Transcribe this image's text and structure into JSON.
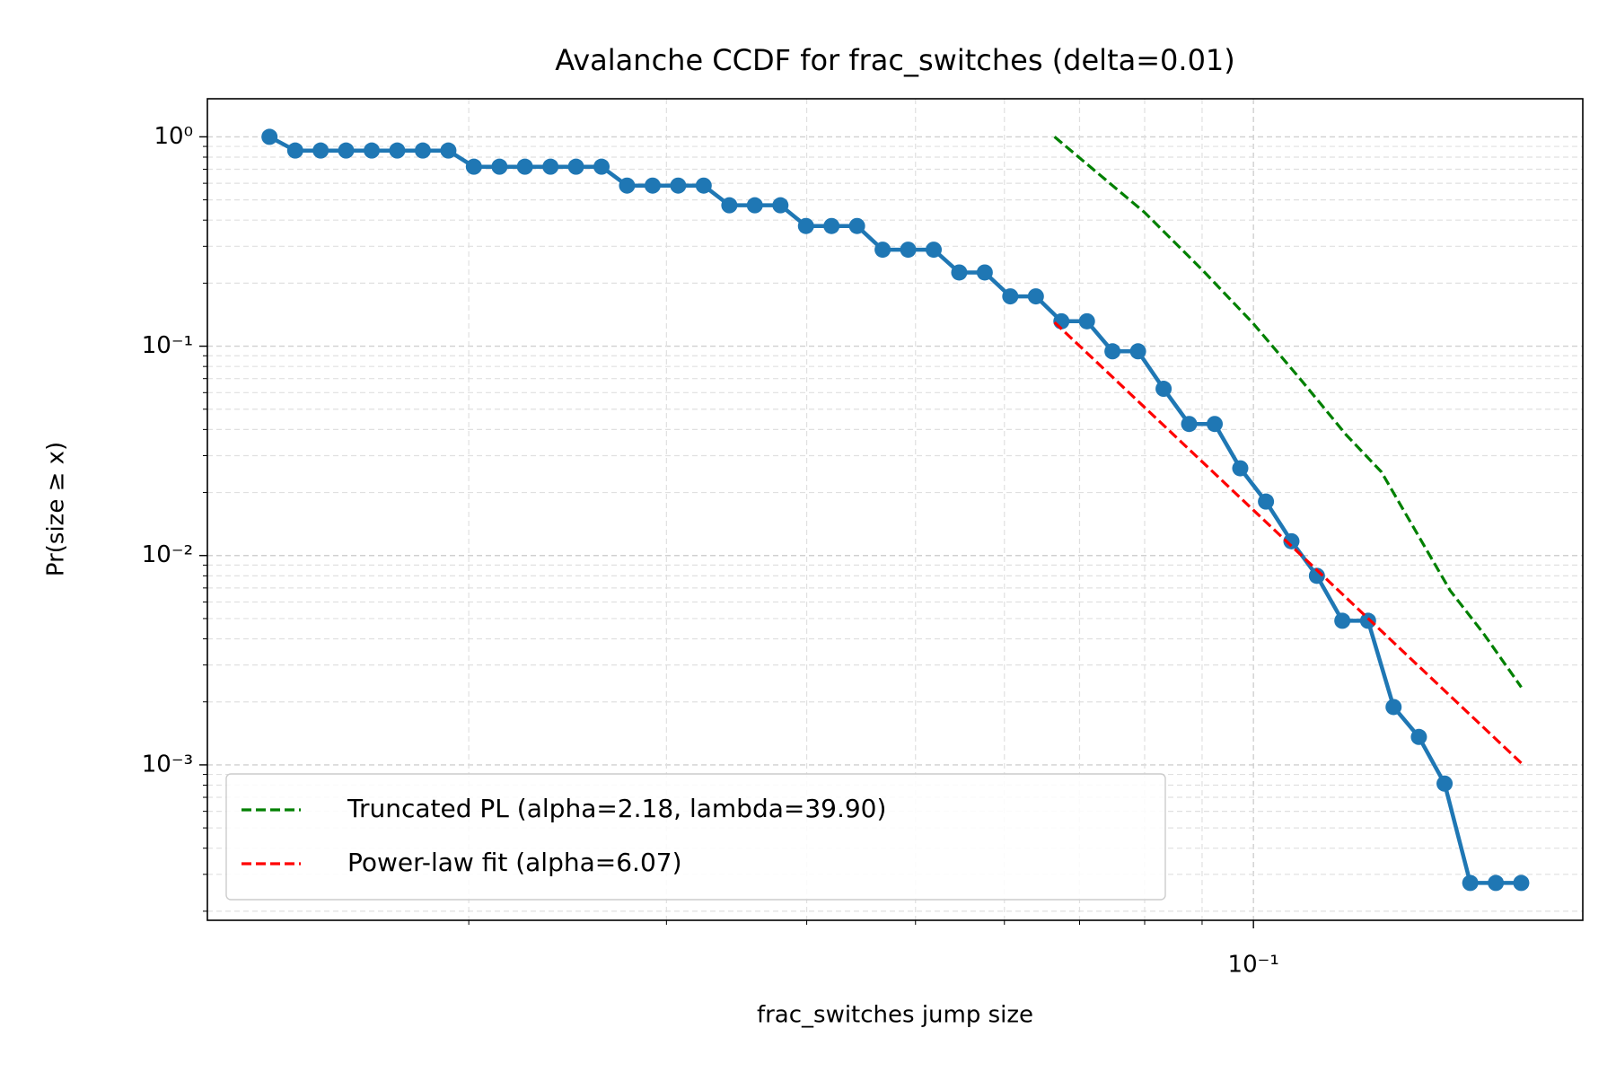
{
  "chart_data": {
    "type": "line",
    "title": "Avalanche CCDF for frac_switches (delta=0.01)",
    "xlabel": "frac_switches jump size",
    "ylabel": "Pr(size ≥ x)",
    "xscale": "log",
    "yscale": "log",
    "grid": true,
    "legend": "lower left",
    "xlim": [
      0.0117,
      0.1965
    ],
    "ylim": [
      0.000181,
      1.52
    ],
    "xticks": [
      {
        "value": 0.1,
        "label": "10⁻¹"
      }
    ],
    "yticks": [
      {
        "value": 1,
        "label": "10⁰"
      },
      {
        "value": 0.1,
        "label": "10⁻¹"
      },
      {
        "value": 0.01,
        "label": "10⁻²"
      },
      {
        "value": 0.001,
        "label": "10⁻³"
      }
    ],
    "xminorticks": [
      0.02,
      0.03,
      0.04,
      0.05,
      0.06,
      0.07,
      0.08,
      0.09
    ],
    "yminorticks": [
      0.0002,
      0.0003,
      0.0004,
      0.0005,
      0.0006,
      0.0007,
      0.0008,
      0.0009,
      0.002,
      0.003,
      0.004,
      0.005,
      0.006,
      0.007,
      0.008,
      0.009,
      0.02,
      0.03,
      0.04,
      0.05,
      0.06,
      0.07,
      0.08,
      0.09,
      0.2,
      0.3,
      0.4,
      0.5,
      0.6,
      0.7,
      0.8,
      0.9
    ],
    "series": [
      {
        "color": "#1f77b4",
        "markers": true,
        "dash": false,
        "x": [
          0.01329,
          0.01401,
          0.01476,
          0.01555,
          0.01639,
          0.01727,
          0.0182,
          0.01918,
          0.02021,
          0.0213,
          0.02244,
          0.02365,
          0.02492,
          0.02626,
          0.02767,
          0.02916,
          0.03073,
          0.03238,
          0.03413,
          0.03596,
          0.0379,
          0.03994,
          0.04209,
          0.04435,
          0.04674,
          0.04925,
          0.0519,
          0.05469,
          0.05763,
          0.06073,
          0.064,
          0.06744,
          0.07107,
          0.07489,
          0.07892,
          0.08317,
          0.08764,
          0.09236,
          0.09733,
          0.1026,
          0.1081,
          0.1139,
          0.12,
          0.1265,
          0.1333,
          0.1404,
          0.148,
          0.156,
          0.1644,
          0.1732
        ],
        "values": [
          1.0,
          0.86,
          0.86,
          0.86,
          0.86,
          0.86,
          0.86,
          0.86,
          0.72,
          0.72,
          0.72,
          0.72,
          0.72,
          0.72,
          0.585,
          0.585,
          0.585,
          0.585,
          0.471,
          0.471,
          0.471,
          0.375,
          0.375,
          0.375,
          0.289,
          0.289,
          0.289,
          0.225,
          0.225,
          0.173,
          0.173,
          0.1315,
          0.1315,
          0.0945,
          0.0945,
          0.0626,
          0.0425,
          0.0425,
          0.0261,
          0.0181,
          0.0117,
          0.008,
          0.00488,
          0.00488,
          0.00189,
          0.00136,
          0.000814,
          0.000273,
          0.000273,
          0.000273
        ]
      },
      {
        "name": "Truncated PL (alpha=2.18, lambda=39.90)",
        "color": "#008000",
        "markers": false,
        "dash": true,
        "x": [
          0.0665,
          0.08,
          0.09,
          0.1,
          0.11,
          0.121,
          0.13,
          0.1497,
          0.16,
          0.1732
        ],
        "values": [
          1.0,
          0.435,
          0.232,
          0.128,
          0.07,
          0.0376,
          0.0251,
          0.0068,
          0.0043,
          0.00235
        ]
      },
      {
        "name": "Power-law fit (alpha=6.07)",
        "color": "#ff0000",
        "markers": false,
        "dash": true,
        "x": [
          0.0665,
          0.1732
        ],
        "values": [
          0.13,
          0.00102
        ]
      }
    ]
  }
}
